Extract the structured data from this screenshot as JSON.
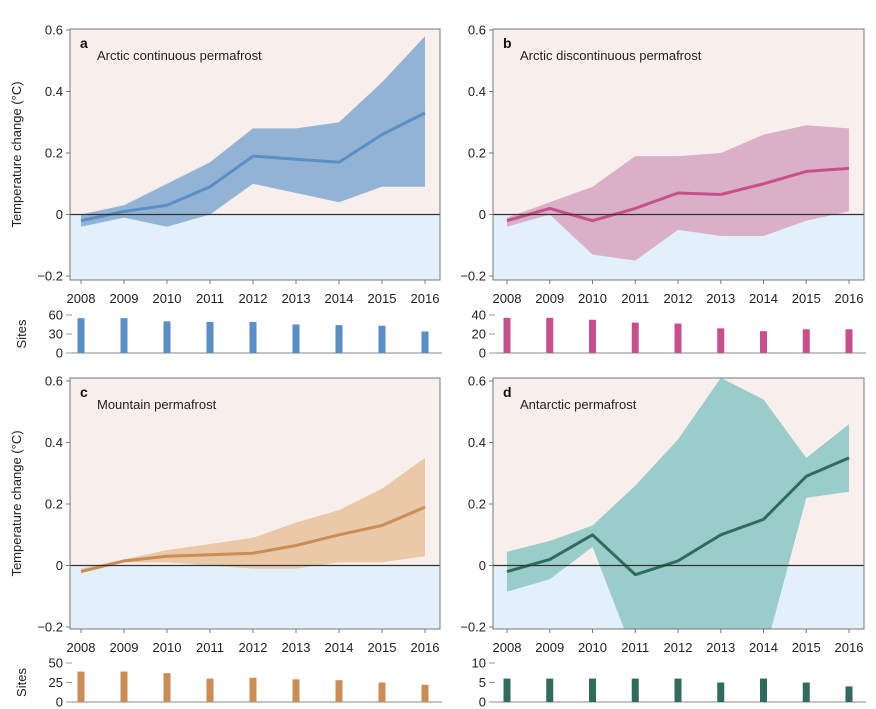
{
  "chart_data": [
    {
      "type": "line",
      "panel": "a",
      "title": "Arctic continuous permafrost",
      "xlabel": "",
      "ylabel": "Temperature change (°C)",
      "x": [
        2008,
        2009,
        2010,
        2011,
        2012,
        2013,
        2014,
        2015,
        2016
      ],
      "xtick_labels": [
        "2008",
        "2009",
        "2010",
        "2011",
        "2012",
        "2013",
        "2014",
        "2015",
        "2016"
      ],
      "ylim": [
        -0.2,
        0.6
      ],
      "yticks": [
        -0.2,
        0,
        0.2,
        0.4,
        0.6
      ],
      "ytick_labels": [
        "−0.2",
        "0",
        "0.2",
        "0.4",
        "0.6"
      ],
      "series": [
        {
          "name": "mean",
          "values": [
            -0.02,
            0.01,
            0.03,
            0.09,
            0.19,
            0.18,
            0.17,
            0.26,
            0.33
          ]
        },
        {
          "name": "upper",
          "values": [
            0.0,
            0.03,
            0.1,
            0.17,
            0.28,
            0.28,
            0.3,
            0.43,
            0.58
          ]
        },
        {
          "name": "lower",
          "values": [
            -0.04,
            -0.01,
            -0.04,
            0.0,
            0.1,
            0.07,
            0.04,
            0.09,
            0.09
          ]
        }
      ],
      "colors": {
        "line": "#5a8ec6",
        "band": "#93b3d4",
        "warm_bg": "#f8efed",
        "cold_bg": "#e2f0fb"
      },
      "sites": {
        "ylabel": "Sites",
        "ylim": [
          0,
          60
        ],
        "yticks": [
          0,
          30,
          60
        ],
        "ytick_labels": [
          "0",
          "30",
          "60"
        ],
        "values": [
          55,
          55,
          50,
          49,
          49,
          45,
          44,
          43,
          34
        ],
        "color": "#5a8ec6"
      }
    },
    {
      "type": "line",
      "panel": "b",
      "title": "Arctic discontinuous permafrost",
      "xlabel": "",
      "ylabel": "",
      "x": [
        2008,
        2009,
        2010,
        2011,
        2012,
        2013,
        2014,
        2015,
        2016
      ],
      "xtick_labels": [
        "2008",
        "2009",
        "2010",
        "2011",
        "2012",
        "2013",
        "2014",
        "2015",
        "2016"
      ],
      "ylim": [
        -0.2,
        0.6
      ],
      "yticks": [
        -0.2,
        0,
        0.2,
        0.4,
        0.6
      ],
      "ytick_labels": [
        "−0.2",
        "0",
        "0.2",
        "0.4",
        "0.6"
      ],
      "series": [
        {
          "name": "mean",
          "values": [
            -0.02,
            0.02,
            -0.02,
            0.02,
            0.07,
            0.065,
            0.1,
            0.14,
            0.15
          ]
        },
        {
          "name": "upper",
          "values": [
            -0.01,
            0.04,
            0.09,
            0.19,
            0.19,
            0.2,
            0.26,
            0.29,
            0.28
          ]
        },
        {
          "name": "lower",
          "values": [
            -0.04,
            0.0,
            -0.13,
            -0.15,
            -0.05,
            -0.07,
            -0.07,
            -0.02,
            0.01
          ]
        }
      ],
      "colors": {
        "line": "#c94f8c",
        "band": "#dab0c9",
        "warm_bg": "#f8efed",
        "cold_bg": "#e2f0fb"
      },
      "sites": {
        "ylabel": "",
        "ylim": [
          0,
          40
        ],
        "yticks": [
          0,
          20,
          40
        ],
        "ytick_labels": [
          "0",
          "20",
          "40"
        ],
        "values": [
          37,
          37,
          35,
          32,
          31,
          26,
          23,
          25,
          25
        ],
        "color": "#c94f8c"
      }
    },
    {
      "type": "line",
      "panel": "c",
      "title": "Mountain permafrost",
      "xlabel": "",
      "ylabel": "Temperature change (°C)",
      "x": [
        2008,
        2009,
        2010,
        2011,
        2012,
        2013,
        2014,
        2015,
        2016
      ],
      "xtick_labels": [
        "2008",
        "2009",
        "2010",
        "2011",
        "2012",
        "2013",
        "2014",
        "2015",
        "2016"
      ],
      "ylim": [
        -0.2,
        0.6
      ],
      "yticks": [
        -0.2,
        0,
        0.2,
        0.4,
        0.6
      ],
      "ytick_labels": [
        "−0.2",
        "0",
        "0.2",
        "0.4",
        "0.6"
      ],
      "series": [
        {
          "name": "mean",
          "values": [
            -0.02,
            0.015,
            0.03,
            0.035,
            0.04,
            0.065,
            0.1,
            0.13,
            0.19
          ]
        },
        {
          "name": "upper",
          "values": [
            -0.01,
            0.02,
            0.05,
            0.07,
            0.09,
            0.14,
            0.18,
            0.25,
            0.35
          ]
        },
        {
          "name": "lower",
          "values": [
            -0.025,
            0.01,
            0.01,
            0.0,
            -0.01,
            -0.01,
            0.01,
            0.01,
            0.03
          ]
        }
      ],
      "colors": {
        "line": "#c98d55",
        "band": "#eac9a8",
        "warm_bg": "#f8efed",
        "cold_bg": "#e2f0fb"
      },
      "sites": {
        "ylabel": "Sites",
        "ylim": [
          0,
          50
        ],
        "yticks": [
          0,
          25,
          50
        ],
        "ytick_labels": [
          "0",
          "25",
          "50"
        ],
        "values": [
          39,
          39,
          37,
          30,
          31,
          29,
          28,
          25,
          22
        ],
        "color": "#c98d55"
      }
    },
    {
      "type": "line",
      "panel": "d",
      "title": "Antarctic permafrost",
      "xlabel": "",
      "ylabel": "",
      "x": [
        2008,
        2009,
        2010,
        2011,
        2012,
        2013,
        2014,
        2015,
        2016
      ],
      "xtick_labels": [
        "2008",
        "2009",
        "2010",
        "2011",
        "2012",
        "2013",
        "2014",
        "2015",
        "2016"
      ],
      "ylim": [
        -0.2,
        0.6
      ],
      "yticks": [
        -0.2,
        0,
        0.2,
        0.4,
        0.6
      ],
      "ytick_labels": [
        "−0.2",
        "0",
        "0.2",
        "0.4",
        "0.6"
      ],
      "series": [
        {
          "name": "mean",
          "values": [
            -0.02,
            0.02,
            0.1,
            -0.03,
            0.015,
            0.1,
            0.15,
            0.29,
            0.35
          ]
        },
        {
          "name": "upper",
          "values": [
            0.045,
            0.08,
            0.13,
            0.26,
            0.41,
            0.61,
            0.54,
            0.35,
            0.46
          ]
        },
        {
          "name": "lower",
          "values": [
            -0.085,
            -0.045,
            0.06,
            -0.3,
            -0.5,
            -0.5,
            -0.3,
            0.22,
            0.24
          ]
        }
      ],
      "colors": {
        "line": "#2f6c5f",
        "band": "#9acdca",
        "warm_bg": "#f8efed",
        "cold_bg": "#e2f0fb"
      },
      "sites": {
        "ylabel": "",
        "ylim": [
          0,
          10
        ],
        "yticks": [
          0,
          5,
          10
        ],
        "ytick_labels": [
          "0",
          "5",
          "10"
        ],
        "values": [
          6,
          6,
          6,
          6,
          6,
          5,
          6,
          5,
          4
        ],
        "color": "#2f6c5f"
      }
    }
  ]
}
